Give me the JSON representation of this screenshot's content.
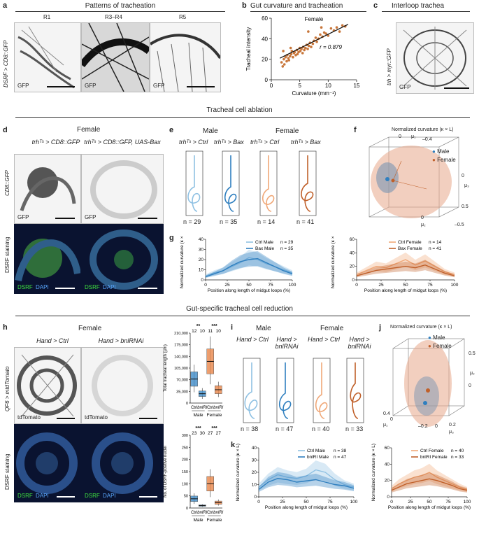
{
  "panel_a": {
    "letter": "a",
    "title": "Patterns of tracheation",
    "regions": [
      "R1",
      "R3–R4",
      "R5"
    ],
    "genotype": "DSRF > CD8::GFP",
    "stain": "GFP"
  },
  "panel_b": {
    "letter": "b",
    "title": "Gut curvature and tracheation",
    "group": "Female",
    "r_label": "r = 0.879"
  },
  "panel_c": {
    "letter": "c",
    "title": "Interloop trachea",
    "genotype": "trh > myr::GFP",
    "stain": "GFP"
  },
  "section1": {
    "title": "Tracheal cell ablation"
  },
  "panel_d": {
    "letter": "d",
    "group": "Female",
    "col1": "trhᵀˢ > CD8::GFP",
    "col2": "trhᵀˢ > CD8::GFP, UAS-Bax",
    "row1": "CD8::GFP",
    "row2": "DSRF staining",
    "stain_gfp": "GFP",
    "stain_dsrf": "DSRF",
    "stain_dapi": "DAPI"
  },
  "panel_e": {
    "letter": "e",
    "male": "Male",
    "female": "Female",
    "cols": [
      "trhᵀˢ > Ctrl",
      "trhᵀˢ > Bax",
      "trhᵀˢ > Ctrl",
      "trhᵀˢ > Bax"
    ],
    "ns": [
      "n = 29",
      "n = 35",
      "n = 14",
      "n = 41"
    ]
  },
  "panel_f": {
    "letter": "f",
    "title": "Normalized curvature (κ × L)",
    "legend": [
      "Male",
      "Female"
    ],
    "axes": [
      "μ₁",
      "μ₂",
      "μ₃"
    ],
    "ticks": [
      "0",
      "–0.4",
      "0",
      "0.5",
      "0",
      "–0.5"
    ]
  },
  "panel_g": {
    "letter": "g"
  },
  "section2": {
    "title": "Gut-specific tracheal cell reduction"
  },
  "panel_h": {
    "letter": "h",
    "group": "Female",
    "col1": "Hand > Ctrl",
    "col2": "Hand > bnlRNAi",
    "row1": "QF6 > mtdTomato",
    "row2": "DSRF staining",
    "stain_td": "tdTomato",
    "stain_dsrf": "DSRF",
    "stain_dapi": "DAPI"
  },
  "panel_i": {
    "letter": "i",
    "male": "Male",
    "female": "Female",
    "cols": [
      "Hand > Ctrl",
      "Hand > bnlRNAi",
      "Hand > Ctrl",
      "Hand > bnlRNAi"
    ],
    "ns": [
      "n = 38",
      "n = 47",
      "n = 40",
      "n = 33"
    ]
  },
  "panel_j": {
    "letter": "j",
    "title": "Normalized curvature (κ × L)",
    "legend": [
      "Male",
      "Female"
    ],
    "axes": [
      "μ₁",
      "μ₂",
      "μ₃"
    ],
    "ticks": [
      "0.5",
      "0",
      "0.4",
      "0",
      "–0.2",
      "0",
      "0.2"
    ]
  },
  "panel_k": {
    "letter": "k"
  },
  "chart_data": [
    {
      "id": "b",
      "type": "scatter",
      "title": "Female",
      "xlabel": "Curvature (mm⁻¹)",
      "ylabel": "Tracheal intensity",
      "xlim": [
        0,
        15
      ],
      "ylim": [
        0,
        60
      ],
      "xticks": [
        0,
        5,
        10,
        15
      ],
      "yticks": [
        0,
        20,
        40,
        60
      ],
      "annotation": "r = 0.879",
      "fit": [
        [
          1.5,
          21
        ],
        [
          13.5,
          54
        ]
      ],
      "points": [
        [
          1.8,
          17
        ],
        [
          2.0,
          13
        ],
        [
          2.2,
          20
        ],
        [
          2.3,
          15
        ],
        [
          2.5,
          22
        ],
        [
          2.7,
          18
        ],
        [
          2.8,
          24
        ],
        [
          3.0,
          21
        ],
        [
          3.1,
          19
        ],
        [
          3.3,
          23
        ],
        [
          3.5,
          25
        ],
        [
          3.6,
          28
        ],
        [
          3.8,
          22
        ],
        [
          4.0,
          26
        ],
        [
          4.1,
          27
        ],
        [
          4.3,
          24
        ],
        [
          4.5,
          29
        ],
        [
          4.6,
          25
        ],
        [
          4.8,
          27
        ],
        [
          5.0,
          31
        ],
        [
          5.1,
          28
        ],
        [
          5.3,
          30
        ],
        [
          5.5,
          26
        ],
        [
          5.6,
          32
        ],
        [
          5.8,
          29
        ],
        [
          6.0,
          31
        ],
        [
          6.2,
          34
        ],
        [
          6.4,
          30
        ],
        [
          6.6,
          33
        ],
        [
          6.8,
          36
        ],
        [
          7.0,
          32
        ],
        [
          7.3,
          35
        ],
        [
          7.5,
          38
        ],
        [
          7.8,
          41
        ],
        [
          8.0,
          37
        ],
        [
          8.3,
          40
        ],
        [
          8.6,
          44
        ],
        [
          9.0,
          42
        ],
        [
          9.3,
          46
        ],
        [
          9.6,
          45
        ],
        [
          10.0,
          43
        ],
        [
          10.5,
          50
        ],
        [
          11.0,
          48
        ],
        [
          11.5,
          51
        ],
        [
          12.0,
          47
        ],
        [
          12.5,
          53
        ],
        [
          13.0,
          52
        ],
        [
          2.1,
          28
        ],
        [
          3.4,
          31
        ],
        [
          6.5,
          47
        ],
        [
          8.8,
          51
        ]
      ]
    },
    {
      "id": "g_male",
      "type": "line",
      "xlabel": "Position along length of midgut loops (%)",
      "ylabel": "Normalized curvature (κ × L)",
      "xlim": [
        0,
        100
      ],
      "ylim": [
        0,
        40
      ],
      "xticks": [
        0,
        25,
        50,
        75,
        100
      ],
      "yticks": [
        0,
        10,
        20,
        30,
        40
      ],
      "x": [
        0,
        10,
        20,
        30,
        40,
        50,
        60,
        70,
        80,
        90,
        100
      ],
      "series": [
        {
          "name": "Ctrl Male",
          "n": "n = 29",
          "color": "#8fc1e3",
          "values": [
            4,
            7,
            9,
            13,
            17,
            22,
            20,
            16,
            13,
            10,
            7
          ]
        },
        {
          "name": "Bax Male",
          "n": "n = 35",
          "color": "#2f7fbf",
          "values": [
            3,
            6,
            9,
            14,
            18,
            20,
            21,
            17,
            13,
            9,
            6
          ]
        }
      ]
    },
    {
      "id": "g_female",
      "type": "line",
      "xlabel": "Position along length of midgut loops (%)",
      "ylabel": "Normalized curvature (κ × L)",
      "xlim": [
        0,
        100
      ],
      "ylim": [
        0,
        60
      ],
      "xticks": [
        0,
        25,
        50,
        75,
        100
      ],
      "yticks": [
        0,
        20,
        40,
        60
      ],
      "x": [
        0,
        10,
        20,
        30,
        40,
        50,
        60,
        70,
        80,
        90,
        100
      ],
      "series": [
        {
          "name": "Ctrl Female",
          "n": "n = 14",
          "color": "#f0a878",
          "values": [
            8,
            14,
            20,
            18,
            24,
            30,
            22,
            28,
            20,
            12,
            8
          ]
        },
        {
          "name": "Bax Female",
          "n": "n = 41",
          "color": "#c0602a",
          "values": [
            6,
            10,
            14,
            16,
            18,
            20,
            18,
            22,
            16,
            10,
            6
          ]
        }
      ]
    },
    {
      "id": "h_length",
      "type": "bar",
      "ylabel": "Total tracheal length (µm)",
      "ylim": [
        0,
        210000
      ],
      "yticks": [
        0,
        35000,
        70000,
        105000,
        140000,
        175000,
        210000
      ],
      "ytick_labels": [
        "0",
        "35,000",
        "70,000",
        "105,000",
        "140,000",
        "175,000",
        "210,000"
      ],
      "categories": [
        "Ctrl",
        "bnlRI",
        "Ctrl",
        "bnlRI"
      ],
      "groups": [
        "Male",
        "Female"
      ],
      "medians": [
        72000,
        28000,
        125000,
        40000
      ],
      "ns": [
        "12",
        "10",
        "11",
        "10"
      ],
      "sig": [
        "**",
        "***"
      ]
    },
    {
      "id": "h_nuclei",
      "type": "bar",
      "ylabel": "No. of DSRF-positive nuclei",
      "ylim": [
        0,
        300
      ],
      "yticks": [
        0,
        50,
        100,
        150,
        200,
        250,
        300
      ],
      "categories": [
        "Ctrl",
        "bnlRI",
        "Ctrl",
        "bnlRI"
      ],
      "groups": [
        "Male",
        "Female"
      ],
      "medians": [
        38,
        10,
        100,
        22
      ],
      "ns": [
        "23",
        "30",
        "27",
        "27"
      ],
      "sig": [
        "***",
        "***"
      ]
    },
    {
      "id": "k_male",
      "type": "line",
      "xlabel": "Position along length of midgut loops (%)",
      "ylabel": "Normalized curvature (κ × L)",
      "xlim": [
        0,
        100
      ],
      "ylim": [
        0,
        40
      ],
      "xticks": [
        0,
        25,
        50,
        75,
        100
      ],
      "yticks": [
        0,
        10,
        20,
        30,
        40
      ],
      "x": [
        0,
        10,
        20,
        30,
        40,
        50,
        60,
        70,
        80,
        90,
        100
      ],
      "series": [
        {
          "name": "Ctrl Male",
          "n": "n = 38",
          "color": "#8fc1e3",
          "values": [
            8,
            14,
            18,
            16,
            15,
            17,
            22,
            20,
            14,
            10,
            8
          ]
        },
        {
          "name": "bnlRI Male",
          "n": "n = 47",
          "color": "#2f7fbf",
          "values": [
            6,
            12,
            15,
            14,
            12,
            13,
            14,
            12,
            10,
            9,
            7
          ]
        }
      ]
    },
    {
      "id": "k_female",
      "type": "line",
      "xlabel": "Position along length of midgut loops (%)",
      "ylabel": "Normalized curvature (κ × L)",
      "xlim": [
        0,
        100
      ],
      "ylim": [
        0,
        60
      ],
      "xticks": [
        0,
        25,
        50,
        75,
        100
      ],
      "yticks": [
        0,
        20,
        40,
        60
      ],
      "x": [
        0,
        10,
        20,
        30,
        40,
        50,
        60,
        70,
        80,
        90,
        100
      ],
      "series": [
        {
          "name": "Ctrl Female",
          "n": "n = 40",
          "color": "#f0a878",
          "values": [
            10,
            16,
            20,
            24,
            26,
            30,
            24,
            20,
            16,
            12,
            9
          ]
        },
        {
          "name": "bnlRI Female",
          "n": "n = 33",
          "color": "#c0602a",
          "values": [
            8,
            12,
            16,
            18,
            20,
            22,
            20,
            17,
            14,
            10,
            8
          ]
        }
      ]
    }
  ]
}
